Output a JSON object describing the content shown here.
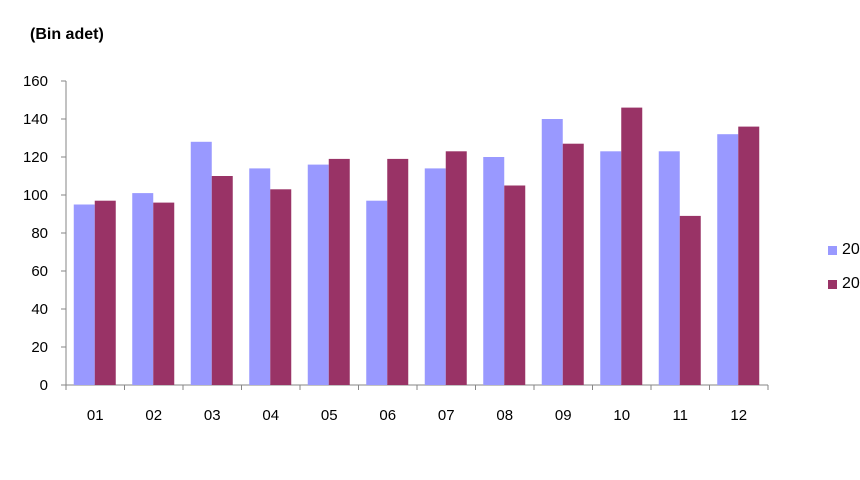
{
  "chart_data": {
    "type": "bar",
    "unit_label": "(Bin adet)",
    "categories": [
      "01",
      "02",
      "03",
      "04",
      "05",
      "06",
      "07",
      "08",
      "09",
      "10",
      "11",
      "12"
    ],
    "series": [
      {
        "name": "20",
        "color": "#9999ff",
        "values": [
          95,
          101,
          128,
          114,
          116,
          97,
          114,
          120,
          140,
          123,
          123,
          132
        ]
      },
      {
        "name": "20",
        "color": "#993366",
        "values": [
          97,
          96,
          110,
          103,
          119,
          119,
          123,
          105,
          127,
          146,
          89,
          136
        ]
      }
    ],
    "ylim": [
      0,
      160
    ],
    "yticks": [
      0,
      20,
      40,
      60,
      80,
      100,
      120,
      140,
      160
    ],
    "grid": false,
    "legend_position": "right"
  }
}
